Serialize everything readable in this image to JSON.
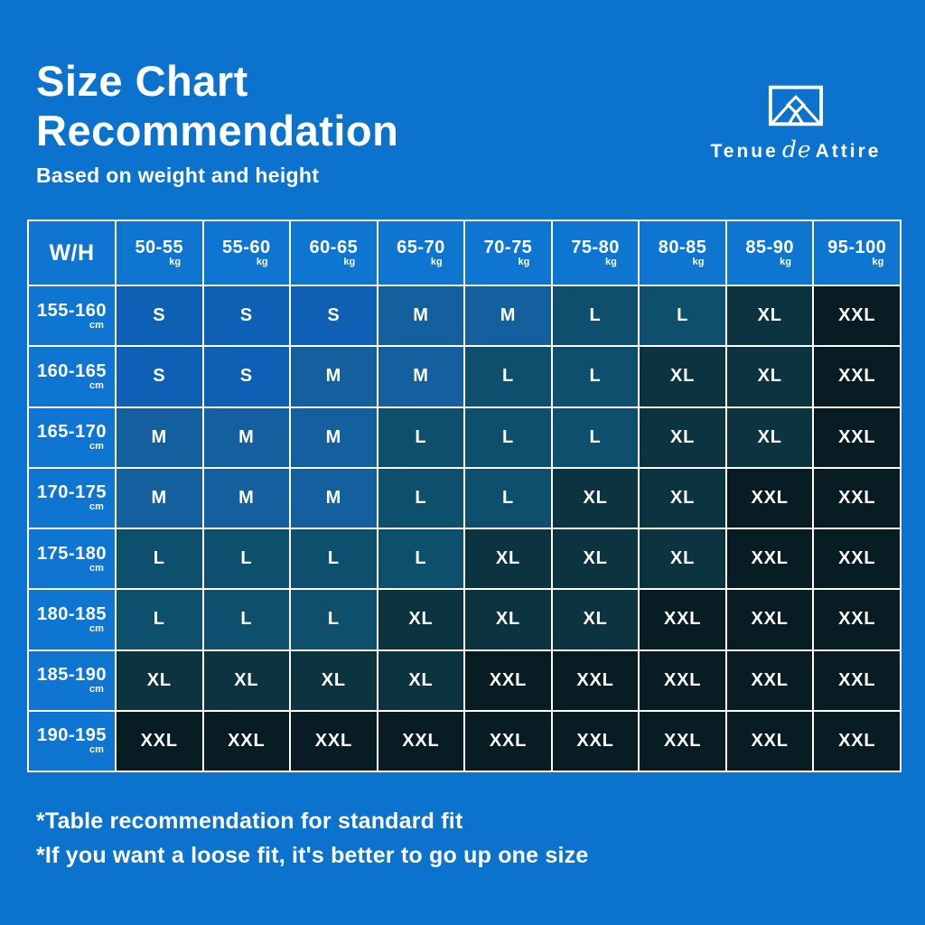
{
  "page": {
    "background": "#0b73cd",
    "grid_line_color": "#ffffff",
    "header_cell_color": "#0e76d1"
  },
  "header": {
    "title_line1": "Size Chart",
    "title_line2": "Recommendation",
    "subtitle": "Based on weight and height"
  },
  "brand": {
    "word1": "Tenue",
    "word2": "de",
    "word3": "Attire",
    "icon": "mountain-frame-icon"
  },
  "chart_data": {
    "type": "heatmap",
    "title": "Size Chart Recommendation",
    "subtitle": "Based on weight and height",
    "corner_label": "W/H",
    "column_unit": "kg",
    "row_unit": "cm",
    "columns": [
      "50-55",
      "55-60",
      "60-65",
      "65-70",
      "70-75",
      "75-80",
      "80-85",
      "85-90",
      "95-100"
    ],
    "rows": [
      "155-160",
      "160-165",
      "165-170",
      "170-175",
      "175-180",
      "180-185",
      "185-190",
      "190-195"
    ],
    "values": [
      [
        "S",
        "S",
        "S",
        "M",
        "M",
        "L",
        "L",
        "XL",
        "XXL"
      ],
      [
        "S",
        "S",
        "M",
        "M",
        "L",
        "L",
        "XL",
        "XL",
        "XXL"
      ],
      [
        "M",
        "M",
        "M",
        "L",
        "L",
        "L",
        "XL",
        "XL",
        "XXL"
      ],
      [
        "M",
        "M",
        "M",
        "L",
        "L",
        "XL",
        "XL",
        "XXL",
        "XXL"
      ],
      [
        "L",
        "L",
        "L",
        "L",
        "XL",
        "XL",
        "XL",
        "XXL",
        "XXL"
      ],
      [
        "L",
        "L",
        "L",
        "XL",
        "XL",
        "XL",
        "XXL",
        "XXL",
        "XXL"
      ],
      [
        "XL",
        "XL",
        "XL",
        "XL",
        "XXL",
        "XXL",
        "XXL",
        "XXL",
        "XXL"
      ],
      [
        "XXL",
        "XXL",
        "XXL",
        "XXL",
        "XXL",
        "XXL",
        "XXL",
        "XXL",
        "XXL"
      ]
    ],
    "size_colors": {
      "S": "#0d60b3",
      "M": "#145f9d",
      "L": "#0f4f6e",
      "XL": "#0c3440",
      "XXL": "#081d23"
    },
    "legend_position": "none",
    "grid": true
  },
  "footnotes": [
    "*Table recommendation for standard fit",
    "*If you want a loose fit, it's better to go up one size"
  ]
}
